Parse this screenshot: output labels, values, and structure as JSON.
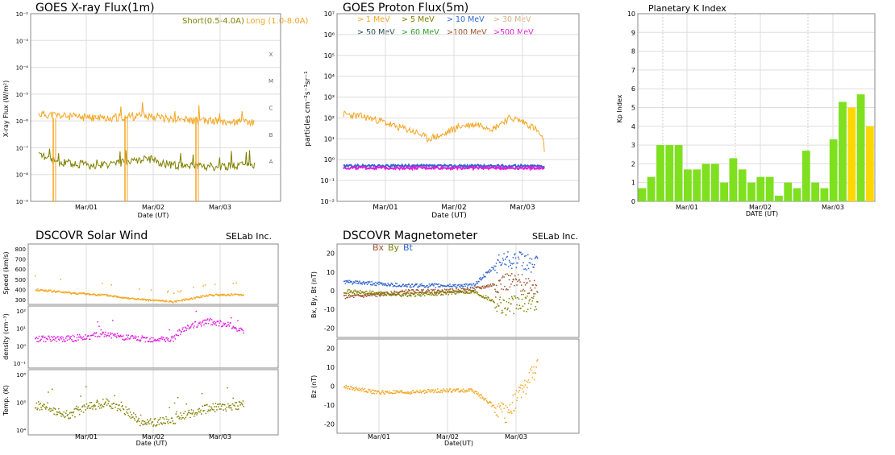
{
  "colors": {
    "orange": "#f5a623",
    "olive": "#808000",
    "green": "#2ca02c",
    "blue": "#3366cc",
    "darkslate": "#2f4f4f",
    "brown": "#a0522d",
    "magenta": "#e020e0",
    "tan": "#d2b48c",
    "kp_green": "#7ee01f",
    "kp_yellow": "#ffd700",
    "grid": "#dddddd"
  },
  "chart_data": [
    {
      "id": "xray",
      "type": "line",
      "title": "GOES X-ray Flux(1m)",
      "xlabel": "Date (UT)",
      "ylabel": "X-ray Flux (W/m²)",
      "x_ticks": [
        "Mar/01",
        "Mar/02",
        "Mar/03"
      ],
      "y_scale": "log",
      "y_ticks": [
        "10⁻²",
        "10⁻³",
        "10⁻⁴",
        "10⁻⁵",
        "10⁻⁶",
        "10⁻⁷",
        "10⁻⁸",
        "10⁻⁹"
      ],
      "class_labels": [
        "X",
        "M",
        "C",
        "B",
        "A"
      ],
      "legend": [
        {
          "name": "Short(0.5-4.0A)",
          "color": "#808000"
        },
        {
          "name": "Long (1.0-8.0A)",
          "color": "#f5a623"
        }
      ],
      "series": [
        {
          "name": "Long (1.0-8.0A)",
          "color": "#f5a623",
          "x": [
            "Feb/28 12:00",
            "Feb/28 18:00",
            "Mar/01 00:00",
            "Mar/01 06:00",
            "Mar/01 12:00",
            "Mar/01 18:00",
            "Mar/02 00:00",
            "Mar/02 06:00",
            "Mar/02 12:00",
            "Mar/02 18:00",
            "Mar/03 00:00",
            "Mar/03 06:00",
            "Mar/03 12:00"
          ],
          "values": [
            1.8e-06,
            1.6e-06,
            1.4e-06,
            1.3e-06,
            1.3e-06,
            1.4e-06,
            1.6e-06,
            1.3e-06,
            1.1e-06,
            1e-06,
            1e-06,
            9e-07,
            9e-07
          ]
        },
        {
          "name": "Short(0.5-4.0A)",
          "color": "#808000",
          "x": [
            "Feb/28 12:00",
            "Feb/28 18:00",
            "Mar/01 00:00",
            "Mar/01 06:00",
            "Mar/01 12:00",
            "Mar/01 18:00",
            "Mar/02 00:00",
            "Mar/02 06:00",
            "Mar/02 12:00",
            "Mar/02 18:00",
            "Mar/03 00:00",
            "Mar/03 06:00",
            "Mar/03 12:00"
          ],
          "values": [
            5e-08,
            3e-08,
            2.5e-08,
            2.2e-08,
            2.5e-08,
            3e-08,
            4e-08,
            2.5e-08,
            2e-08,
            2e-08,
            2e-08,
            2e-08,
            2e-08
          ]
        }
      ]
    },
    {
      "id": "proton",
      "type": "line",
      "title": "GOES Proton Flux(5m)",
      "xlabel": "Date (UT)",
      "ylabel": "particles cm⁻²s⁻¹sr⁻¹",
      "x_ticks": [
        "Mar/01",
        "Mar/02",
        "Mar/03"
      ],
      "y_scale": "log",
      "y_ticks": [
        "10⁷",
        "10⁶",
        "10⁵",
        "10⁴",
        "10³",
        "10²",
        "10¹",
        "10⁰",
        "10⁻¹",
        "10⁻²"
      ],
      "legend": [
        {
          "name": "> 1 MeV",
          "color": "#f5a623"
        },
        {
          "name": "> 5 MeV",
          "color": "#808000"
        },
        {
          "name": "> 10 MeV",
          "color": "#3366cc"
        },
        {
          "name": "> 30 MeV",
          "color": "#d2b48c"
        },
        {
          "name": "> 50 MeV",
          "color": "#2f4f4f"
        },
        {
          "name": "> 60 MeV",
          "color": "#2ca02c"
        },
        {
          "name": ">100 MeV",
          "color": "#a0522d"
        },
        {
          "name": ">500 MeV",
          "color": "#e020e0"
        }
      ],
      "series": [
        {
          "name": "> 1 MeV",
          "color": "#f5a623",
          "x": [
            "Feb/28 12:00",
            "Feb/28 18:00",
            "Mar/01 00:00",
            "Mar/01 06:00",
            "Mar/01 12:00",
            "Mar/01 18:00",
            "Mar/02 00:00",
            "Mar/02 06:00",
            "Mar/02 12:00",
            "Mar/02 18:00",
            "Mar/03 00:00",
            "Mar/03 06:00",
            "Mar/03 12:00"
          ],
          "values": [
            150,
            120,
            80,
            40,
            25,
            10,
            15,
            40,
            50,
            30,
            100,
            50,
            3
          ]
        },
        {
          "name": "> 10 MeV",
          "color": "#3366cc",
          "x": [
            "Feb/28 12:00",
            "Mar/01 00:00",
            "Mar/01 12:00",
            "Mar/02 00:00",
            "Mar/02 12:00",
            "Mar/03 00:00",
            "Mar/03 12:00"
          ],
          "values": [
            0.5,
            0.5,
            0.5,
            0.5,
            0.5,
            0.5,
            0.5
          ]
        },
        {
          "name": ">500 MeV",
          "color": "#e020e0",
          "x": [
            "Feb/28 12:00",
            "Mar/01 00:00",
            "Mar/01 12:00",
            "Mar/02 00:00",
            "Mar/02 12:00",
            "Mar/03 00:00",
            "Mar/03 12:00"
          ],
          "values": [
            0.4,
            0.4,
            0.4,
            0.4,
            0.4,
            0.4,
            0.4
          ]
        }
      ]
    },
    {
      "id": "kp",
      "type": "bar",
      "title": "Planetary K Index",
      "xlabel": "DATE (UT)",
      "ylabel": "Kp Index",
      "ylim": [
        0,
        10
      ],
      "y_ticks": [
        "0",
        "1",
        "2",
        "3",
        "4",
        "5",
        "6",
        "7",
        "8",
        "9",
        "10"
      ],
      "x_ticks": [
        "Mar/01",
        "Mar/02",
        "Mar/03"
      ],
      "values": [
        0.7,
        1.3,
        3.0,
        3.0,
        3.0,
        1.7,
        1.7,
        2.0,
        2.0,
        1.0,
        2.3,
        1.7,
        1.0,
        1.3,
        1.3,
        0.3,
        1.0,
        0.7,
        2.7,
        1.0,
        0.7,
        3.3,
        5.3,
        5.0,
        5.7,
        4.0
      ],
      "bar_colors": [
        "#7ee01f",
        "#7ee01f",
        "#7ee01f",
        "#7ee01f",
        "#7ee01f",
        "#7ee01f",
        "#7ee01f",
        "#7ee01f",
        "#7ee01f",
        "#7ee01f",
        "#7ee01f",
        "#7ee01f",
        "#7ee01f",
        "#7ee01f",
        "#7ee01f",
        "#7ee01f",
        "#7ee01f",
        "#7ee01f",
        "#7ee01f",
        "#7ee01f",
        "#7ee01f",
        "#7ee01f",
        "#7ee01f",
        "#ffd700",
        "#7ee01f",
        "#ffd700"
      ]
    },
    {
      "id": "wind",
      "type": "scatter",
      "title": "DSCOVR Solar Wind",
      "brand": "SELab Inc.",
      "xlabel": "Date (UT)",
      "x_ticks": [
        "Mar/01",
        "Mar/02",
        "Mar/03"
      ],
      "panels": [
        {
          "ylabel": "Speed (km/s)",
          "y_ticks": [
            "800",
            "700",
            "600",
            "500",
            "400",
            "300"
          ],
          "ylim": [
            250,
            800
          ],
          "color": "#f5a623",
          "x": [
            "Feb/28 12:00",
            "Mar/01 00:00",
            "Mar/01 12:00",
            "Mar/02 00:00",
            "Mar/02 12:00",
            "Mar/03 00:00",
            "Mar/03 12:00"
          ],
          "values": [
            390,
            360,
            340,
            300,
            280,
            340,
            345
          ]
        },
        {
          "ylabel": "density (cm⁻³)",
          "y_ticks": [
            "10²",
            "10¹",
            "10⁰",
            "10⁻¹"
          ],
          "y_scale": "log",
          "color": "#e020e0",
          "x": [
            "Feb/28 12:00",
            "Mar/01 00:00",
            "Mar/01 12:00",
            "Mar/02 00:00",
            "Mar/02 12:00",
            "Mar/03 00:00",
            "Mar/03 12:00"
          ],
          "values": [
            3,
            3,
            5,
            3,
            3,
            30,
            8
          ]
        },
        {
          "ylabel": "Temp. (K)",
          "y_ticks": [
            "10⁶",
            "10⁵",
            "10⁴"
          ],
          "y_scale": "log",
          "color": "#808000",
          "x": [
            "Feb/28 12:00",
            "Mar/01 00:00",
            "Mar/01 12:00",
            "Mar/02 00:00",
            "Mar/02 12:00",
            "Mar/03 00:00",
            "Mar/03 12:00"
          ],
          "values": [
            80000,
            30000,
            100000,
            15000,
            20000,
            60000,
            80000
          ]
        }
      ]
    },
    {
      "id": "mag",
      "type": "scatter",
      "title": "DSCOVR Magnetometer",
      "brand": "SELab Inc.",
      "xlabel": "Date(UT)",
      "x_ticks": [
        "Mar/01",
        "Mar/02",
        "Mar/03"
      ],
      "legend": [
        {
          "name": "Bx",
          "color": "#a0522d"
        },
        {
          "name": "By",
          "color": "#808000"
        },
        {
          "name": "Bt",
          "color": "#3366cc"
        }
      ],
      "panels": [
        {
          "ylabel": "Bx, By, Bt (nT)",
          "y_ticks": [
            "20",
            "10",
            "0",
            "-10",
            "-20"
          ],
          "ylim": [
            -25,
            25
          ],
          "series": [
            {
              "name": "Bt",
              "color": "#3366cc",
              "x": [
                "Feb/28 12:00",
                "Mar/01 00:00",
                "Mar/01 12:00",
                "Mar/02 00:00",
                "Mar/02 12:00",
                "Mar/03 00:00",
                "Mar/03 12:00"
              ],
              "values": [
                5,
                4,
                3,
                3,
                3,
                18,
                14
              ]
            },
            {
              "name": "Bx",
              "color": "#a0522d",
              "x": [
                "Feb/28 12:00",
                "Mar/01 00:00",
                "Mar/01 12:00",
                "Mar/02 00:00",
                "Mar/02 12:00",
                "Mar/03 00:00",
                "Mar/03 12:00"
              ],
              "values": [
                -3,
                -2,
                0,
                0,
                1,
                5,
                3
              ]
            },
            {
              "name": "By",
              "color": "#808000",
              "x": [
                "Feb/28 12:00",
                "Mar/01 00:00",
                "Mar/01 12:00",
                "Mar/02 00:00",
                "Mar/02 12:00",
                "Mar/03 00:00",
                "Mar/03 12:00"
              ],
              "values": [
                0,
                -1,
                -2,
                -1,
                0,
                -8,
                -5
              ]
            }
          ]
        },
        {
          "ylabel": "Bz (nT)",
          "y_ticks": [
            "20",
            "10",
            "0",
            "-10",
            "-20"
          ],
          "ylim": [
            -25,
            25
          ],
          "series": [
            {
              "name": "Bz",
              "color": "#f5a623",
              "x": [
                "Feb/28 12:00",
                "Mar/01 00:00",
                "Mar/01 12:00",
                "Mar/02 00:00",
                "Mar/02 12:00",
                "Mar/03 00:00",
                "Mar/03 12:00"
              ],
              "values": [
                0,
                -3,
                -3,
                -2,
                -2,
                -15,
                10
              ]
            }
          ]
        }
      ]
    }
  ]
}
